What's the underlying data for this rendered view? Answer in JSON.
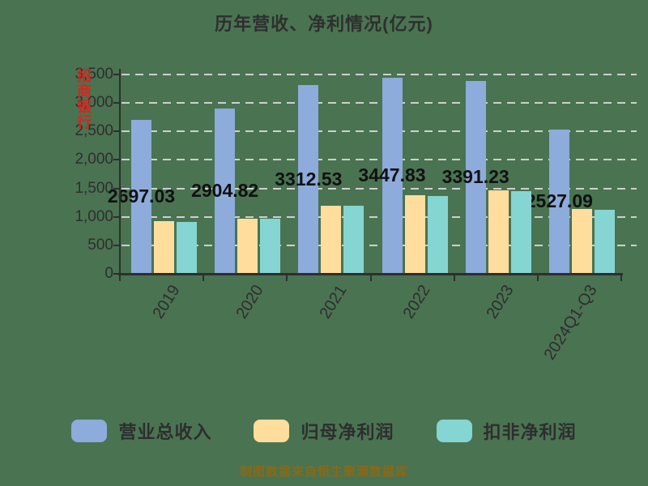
{
  "title": "历年营收、净利情况(亿元)",
  "watermark": "招商银行",
  "footer": "制图数据来自恒生聚源数据库",
  "colors": {
    "background": "#4A7352",
    "revenue_bar": "#8DABDB",
    "net_profit_bar": "#FFDD9D",
    "non_gaap_bar": "#85D5D2",
    "axis": "#2E2E2E",
    "gridline": "#CFCFCF",
    "data_label": "#111111",
    "footer_text": "#8B6914",
    "watermark_text": "#E0201B"
  },
  "legend": [
    {
      "label": "营业总收入",
      "color": "#8DABDB"
    },
    {
      "label": "归母净利润",
      "color": "#FFDD9D"
    },
    {
      "label": "扣非净利润",
      "color": "#85D5D2"
    }
  ],
  "chart_data": {
    "type": "bar",
    "title": "历年营收、净利情况(亿元)",
    "categories": [
      "2019",
      "2020",
      "2021",
      "2022",
      "2023",
      "2024Q1-Q3"
    ],
    "series": [
      {
        "name": "营业总收入",
        "color": "#8DABDB",
        "values": [
          2697.03,
          2904.82,
          3312.53,
          3447.83,
          3391.23,
          2527.09
        ],
        "labels": [
          "2697.03",
          "2904.82",
          "3312.53",
          "3447.83",
          "3391.23",
          "2527.09"
        ]
      },
      {
        "name": "归母净利润",
        "color": "#FFDD9D",
        "values": [
          928.67,
          973.42,
          1199.22,
          1380.12,
          1466.02,
          1131.84
        ]
      },
      {
        "name": "扣非净利润",
        "color": "#85D5D2",
        "values": [
          915,
          965,
          1190,
          1372,
          1458,
          1126
        ]
      }
    ],
    "ylim": [
      0,
      3500
    ],
    "ytick_step": 500,
    "yticks": [
      "0",
      "500",
      "1,000",
      "1,500",
      "2,000",
      "2,500",
      "3,000",
      "3,500"
    ],
    "grid": "horizontal-dashed",
    "legend_position": "bottom",
    "xlabel": "",
    "ylabel": ""
  }
}
